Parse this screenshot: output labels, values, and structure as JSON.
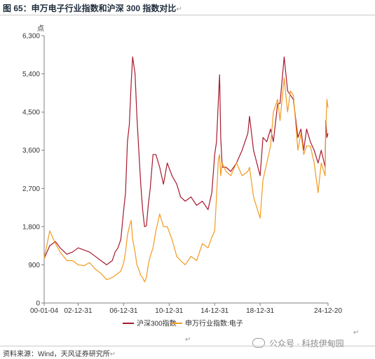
{
  "figure": {
    "title": "图 65：申万电子行业指数和沪深 300 指数对比",
    "source": "资料来源：Wind，天风证券研究所",
    "return_mark": "↵",
    "watermark": "公众号 · 科技伊甸园"
  },
  "colors": {
    "csi300": "#a6192e",
    "sw_electronics": "#f39a1e",
    "axis": "#7f7f7f",
    "text": "#333333"
  },
  "chart_data": {
    "type": "line",
    "unit_label": "点",
    "ylim": [
      0,
      6300
    ],
    "yticks": [
      0,
      900,
      1800,
      2700,
      3600,
      4500,
      5400,
      6300
    ],
    "ytick_labels": [
      "0",
      "900",
      "1,800",
      "2,700",
      "3,600",
      "4,500",
      "5,400",
      "6,300"
    ],
    "xlim": [
      "2000-01-04",
      "2024-12-20"
    ],
    "xticks": [
      "2000-01-04",
      "2002-12-31",
      "2006-12-31",
      "2010-12-31",
      "2014-12-31",
      "2018-12-31",
      "2024-12-20"
    ],
    "xtick_labels": [
      "00-01-04",
      "02-12-31",
      "06-12-31",
      "10-12-31",
      "14-12-31",
      "18-12-31",
      "24-12-20"
    ],
    "grid": false,
    "legend": "bottom",
    "x": [
      "2000-01-04",
      "2000-07-01",
      "2001-01-01",
      "2001-06-01",
      "2002-01-01",
      "2002-07-01",
      "2003-01-01",
      "2003-07-01",
      "2004-01-01",
      "2004-07-01",
      "2005-01-01",
      "2005-07-01",
      "2006-01-01",
      "2006-04-01",
      "2006-07-01",
      "2006-10-01",
      "2007-01-01",
      "2007-03-01",
      "2007-05-01",
      "2007-07-01",
      "2007-09-01",
      "2007-10-16",
      "2008-01-01",
      "2008-03-01",
      "2008-05-01",
      "2008-07-01",
      "2008-09-01",
      "2008-11-01",
      "2009-01-01",
      "2009-03-01",
      "2009-05-01",
      "2009-08-01",
      "2009-11-01",
      "2010-03-01",
      "2010-07-01",
      "2010-11-01",
      "2011-04-01",
      "2011-09-01",
      "2012-01-01",
      "2012-06-01",
      "2012-12-01",
      "2013-06-01",
      "2013-12-01",
      "2014-06-01",
      "2014-10-01",
      "2015-01-01",
      "2015-03-01",
      "2015-05-01",
      "2015-06-08",
      "2015-07-15",
      "2015-09-01",
      "2016-01-01",
      "2016-06-01",
      "2016-12-01",
      "2017-06-01",
      "2017-12-01",
      "2018-01-24",
      "2018-06-01",
      "2018-12-31",
      "2019-04-01",
      "2019-08-01",
      "2019-12-01",
      "2020-03-01",
      "2020-07-15",
      "2020-10-01",
      "2021-02-10",
      "2021-06-01",
      "2021-09-01",
      "2021-12-01",
      "2022-04-27",
      "2022-08-01",
      "2022-10-31",
      "2023-02-01",
      "2023-06-01",
      "2023-10-01",
      "2024-02-05",
      "2024-05-15",
      "2024-09-18",
      "2024-10-08",
      "2024-11-15",
      "2024-12-20"
    ],
    "series": [
      {
        "name": "沪深300指数",
        "values": [
          1050,
          1350,
          1450,
          1300,
          1150,
          1200,
          1300,
          1250,
          1200,
          1100,
          1000,
          900,
          1000,
          1200,
          1300,
          1500,
          2200,
          2600,
          3800,
          4200,
          5200,
          5800,
          5400,
          4400,
          3600,
          2800,
          2200,
          1800,
          1820,
          2300,
          2700,
          3500,
          3500,
          3200,
          2800,
          3300,
          3000,
          2800,
          2500,
          2400,
          2500,
          2300,
          2400,
          2200,
          2600,
          3500,
          3800,
          4800,
          5380,
          3900,
          3200,
          3200,
          3100,
          3300,
          3600,
          4000,
          4400,
          3600,
          3000,
          3900,
          3800,
          4100,
          3800,
          4700,
          4700,
          5800,
          5000,
          4900,
          4800,
          3900,
          4100,
          3600,
          4100,
          3800,
          3600,
          3300,
          3600,
          3200,
          4300,
          3900,
          4000
        ]
      },
      {
        "name": "申万行业指数:电子",
        "values": [
          1050,
          1700,
          1400,
          1200,
          1000,
          1000,
          900,
          880,
          950,
          800,
          700,
          550,
          600,
          650,
          700,
          750,
          950,
          1200,
          1600,
          1800,
          1950,
          1500,
          1200,
          900,
          800,
          650,
          600,
          500,
          600,
          900,
          1100,
          1300,
          1700,
          2100,
          1800,
          1800,
          1500,
          1100,
          1000,
          900,
          1100,
          1000,
          1400,
          1300,
          1550,
          1700,
          2500,
          3400,
          3500,
          3000,
          3300,
          3100,
          3000,
          3300,
          3000,
          3100,
          3200,
          2500,
          2000,
          2900,
          3300,
          3700,
          4500,
          4800,
          4300,
          5300,
          4500,
          5000,
          4900,
          3600,
          4000,
          3500,
          3700,
          3700,
          3300,
          2600,
          3300,
          3000,
          4100,
          4800,
          4600
        ]
      }
    ]
  }
}
